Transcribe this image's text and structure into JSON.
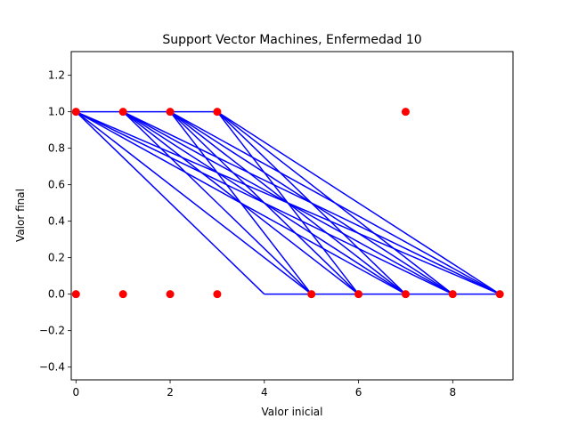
{
  "chart_data": {
    "type": "scatter",
    "title": "Support Vector Machines, Enfermedad 10",
    "xlabel": "Valor inicial",
    "ylabel": "Valor final",
    "xlim": [
      -0.1,
      9.28
    ],
    "ylim": [
      -0.47,
      1.33
    ],
    "xticks": [
      0,
      2,
      4,
      6,
      8
    ],
    "yticks": [
      -0.4,
      -0.2,
      0.0,
      0.2,
      0.4,
      0.6,
      0.8,
      1.0,
      1.2
    ],
    "ytick_labels": [
      "−0.4",
      "−0.2",
      "0.0",
      "0.2",
      "0.4",
      "0.6",
      "0.8",
      "1.0",
      "1.2"
    ],
    "grid": false,
    "point_color": "#ff0000",
    "line_color": "#0000ff",
    "points": [
      {
        "x": 0,
        "y": 1
      },
      {
        "x": 1,
        "y": 1
      },
      {
        "x": 2,
        "y": 1
      },
      {
        "x": 3,
        "y": 1
      },
      {
        "x": 7,
        "y": 1
      },
      {
        "x": 0,
        "y": 0
      },
      {
        "x": 1,
        "y": 0
      },
      {
        "x": 2,
        "y": 0
      },
      {
        "x": 3,
        "y": 0
      },
      {
        "x": 5,
        "y": 0
      },
      {
        "x": 6,
        "y": 0
      },
      {
        "x": 7,
        "y": 0
      },
      {
        "x": 8,
        "y": 0
      },
      {
        "x": 9,
        "y": 0
      }
    ],
    "line_segments": [
      [
        [
          0,
          1
        ],
        [
          3,
          1
        ]
      ],
      [
        [
          4,
          0
        ],
        [
          9,
          0
        ]
      ],
      [
        [
          0,
          1
        ],
        [
          4,
          0
        ]
      ],
      [
        [
          0,
          1
        ],
        [
          5,
          0
        ]
      ],
      [
        [
          0,
          1
        ],
        [
          7,
          0
        ]
      ],
      [
        [
          0,
          1
        ],
        [
          8,
          0
        ]
      ],
      [
        [
          0,
          1
        ],
        [
          9,
          0
        ]
      ],
      [
        [
          1,
          1
        ],
        [
          5,
          0
        ]
      ],
      [
        [
          1,
          1
        ],
        [
          6,
          0
        ]
      ],
      [
        [
          1,
          1
        ],
        [
          7,
          0
        ]
      ],
      [
        [
          1,
          1
        ],
        [
          8,
          0
        ]
      ],
      [
        [
          1,
          1
        ],
        [
          9,
          0
        ]
      ],
      [
        [
          2,
          1
        ],
        [
          5,
          0
        ]
      ],
      [
        [
          2,
          1
        ],
        [
          6,
          0
        ]
      ],
      [
        [
          2,
          1
        ],
        [
          7,
          0
        ]
      ],
      [
        [
          2,
          1
        ],
        [
          8,
          0
        ]
      ],
      [
        [
          2,
          1
        ],
        [
          9,
          0
        ]
      ],
      [
        [
          3,
          1
        ],
        [
          6,
          0
        ]
      ],
      [
        [
          3,
          1
        ],
        [
          7,
          0
        ]
      ],
      [
        [
          3,
          1
        ],
        [
          8,
          0
        ]
      ],
      [
        [
          3,
          1
        ],
        [
          9,
          0
        ]
      ]
    ]
  }
}
